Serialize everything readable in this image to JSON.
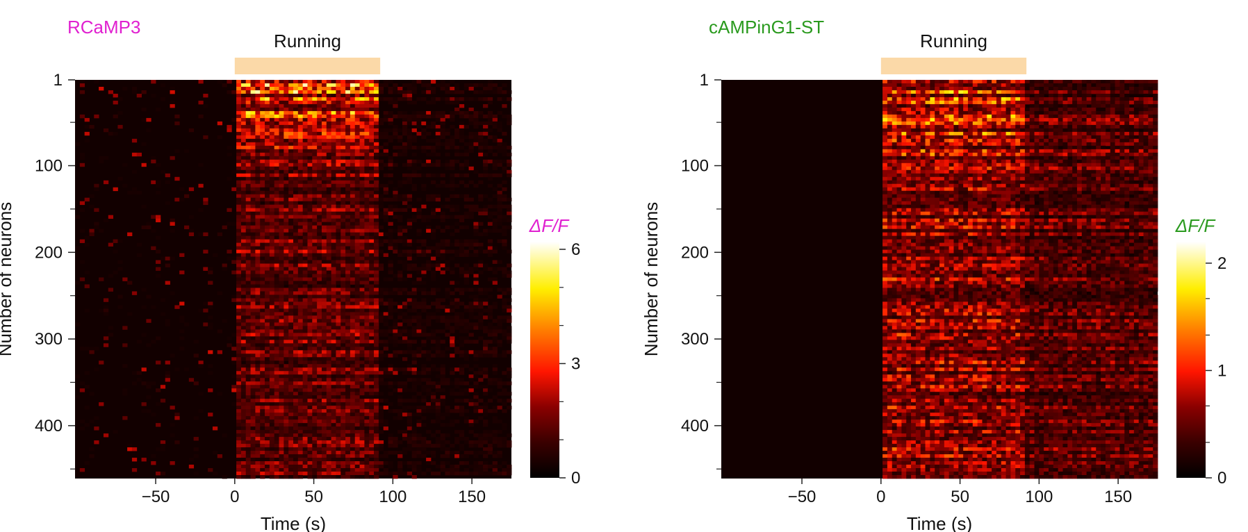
{
  "chart_data": [
    {
      "type": "heatmap",
      "title": "RCaMP3",
      "title_color": "#e020d0",
      "annotation": "Running",
      "annotation_range": [
        0,
        92
      ],
      "annotation_color": "#fbd9a8",
      "xlabel": "Time (s)",
      "ylabel": "Number of neurons",
      "xlim": [
        -101,
        175
      ],
      "ylim": [
        1,
        461
      ],
      "xticks": [
        -50,
        0,
        50,
        100,
        150
      ],
      "xtick_labels": [
        "−50",
        "0",
        "50",
        "100",
        "150"
      ],
      "yticks": [
        1,
        100,
        200,
        300,
        400
      ],
      "yminor_ticks": [
        50,
        150,
        250,
        350,
        450
      ],
      "colorbar": {
        "label": "ΔF/F",
        "label_color": "#e020d0",
        "range": [
          0,
          6.2
        ],
        "ticks": [
          0,
          3,
          6
        ],
        "minor_ticks": [
          1,
          2,
          4,
          5
        ]
      },
      "pattern": {
        "baseline": 0.35,
        "running_level": 1.6,
        "running_top_level": 3.6,
        "post_level": 0.5,
        "sparse_events": 0.06
      }
    },
    {
      "type": "heatmap",
      "title": "cAMPinG1-ST",
      "title_color": "#2a9a1e",
      "annotation": "Running",
      "annotation_range": [
        0,
        92
      ],
      "annotation_color": "#fbd9a8",
      "xlabel": "Time (s)",
      "ylabel": "Number of neurons",
      "xlim": [
        -101,
        175
      ],
      "ylim": [
        1,
        461
      ],
      "xticks": [
        -50,
        0,
        50,
        100,
        150
      ],
      "xtick_labels": [
        "−50",
        "0",
        "50",
        "100",
        "150"
      ],
      "yticks": [
        1,
        100,
        200,
        300,
        400
      ],
      "yminor_ticks": [
        50,
        150,
        250,
        350,
        450
      ],
      "colorbar": {
        "label": "ΔF/F",
        "label_color": "#2a9a1e",
        "range": [
          0,
          2.2
        ],
        "ticks": [
          0,
          1,
          2
        ],
        "minor_ticks": [
          0.33,
          0.67,
          1.33,
          1.67
        ]
      },
      "pattern": {
        "baseline": 0.12,
        "running_level": 0.75,
        "running_top_level": 1.25,
        "post_level": 0.55,
        "sparse_events": 0.0
      }
    }
  ]
}
